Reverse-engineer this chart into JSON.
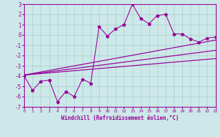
{
  "x_data": [
    0,
    1,
    2,
    3,
    4,
    5,
    6,
    7,
    8,
    9,
    10,
    11,
    12,
    13,
    14,
    15,
    16,
    17,
    18,
    19,
    20,
    21,
    22,
    23
  ],
  "y_scatter": [
    -4.0,
    -5.4,
    -4.5,
    -4.4,
    -6.5,
    -5.5,
    -6.0,
    -4.3,
    -4.7,
    0.8,
    -0.1,
    0.6,
    1.0,
    3.0,
    1.6,
    1.1,
    1.9,
    2.0,
    0.1,
    0.1,
    -0.4,
    -0.7,
    -0.3,
    -0.2
  ],
  "straight_lines": [
    {
      "x0": 0,
      "y0": -3.9,
      "x1": 23,
      "y1": -0.5
    },
    {
      "x0": 0,
      "y0": -3.9,
      "x1": 23,
      "y1": -1.5
    },
    {
      "x0": 0,
      "y0": -3.9,
      "x1": 23,
      "y1": -2.3
    }
  ],
  "xlim": [
    0,
    23
  ],
  "ylim": [
    -7,
    3
  ],
  "yticks": [
    -7,
    -6,
    -5,
    -4,
    -3,
    -2,
    -1,
    0,
    1,
    2,
    3
  ],
  "xticks": [
    0,
    1,
    2,
    3,
    4,
    5,
    6,
    7,
    8,
    9,
    10,
    11,
    12,
    13,
    14,
    15,
    16,
    17,
    18,
    19,
    20,
    21,
    22,
    23
  ],
  "xlabel": "Windchill (Refroidissement éolien,°C)",
  "line_color": "#990099",
  "bg_color": "#cce8e8",
  "grid_color": "#aacccc"
}
